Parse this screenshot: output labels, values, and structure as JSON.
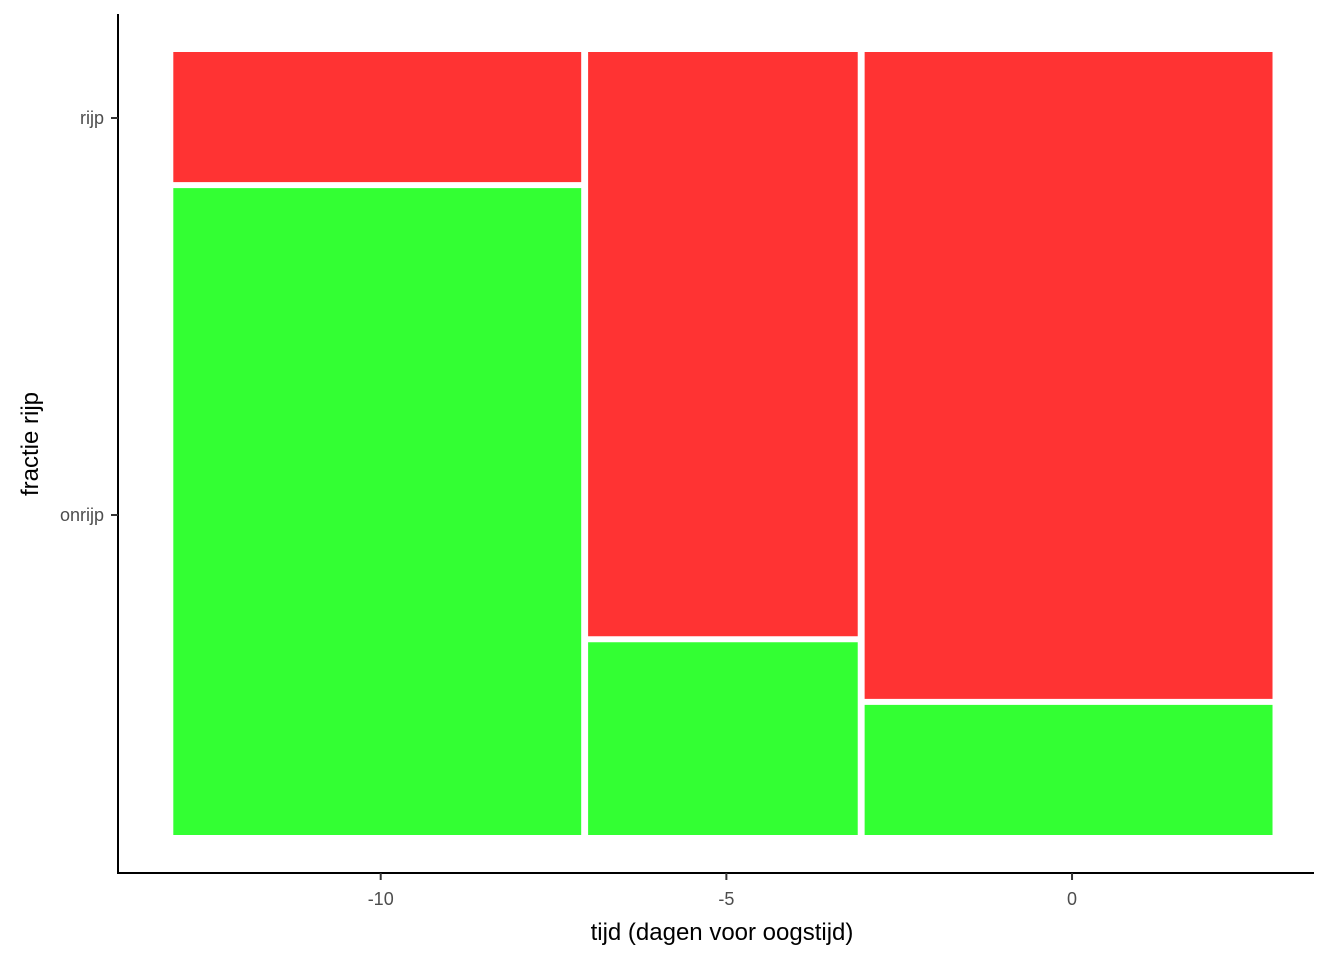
{
  "chart_data": {
    "type": "mosaic",
    "title": "",
    "xlabel": "tijd (dagen voor oogstijd)",
    "ylabel": "fractie rijp",
    "x_ticks": [
      -10,
      -5,
      0
    ],
    "y_tick_labels": [
      "onrijp",
      "rijp"
    ],
    "xlim": [
      -13.8,
      3.5
    ],
    "categories": [
      "onrijp",
      "rijp"
    ],
    "colors": {
      "onrijp": "#33ff33",
      "rijp": "#ff3333"
    },
    "columns": [
      {
        "x": -10,
        "x_start": -13,
        "x_end": -7.1,
        "fractions": {
          "onrijp": 0.83,
          "rijp": 0.17
        }
      },
      {
        "x": -5,
        "x_start": -7,
        "x_end": -3.1,
        "fractions": {
          "onrijp": 0.25,
          "rijp": 0.75
        }
      },
      {
        "x": 0,
        "x_start": -3,
        "x_end": 2.9,
        "fractions": {
          "onrijp": 0.17,
          "rijp": 0.83
        }
      }
    ],
    "legend": "none",
    "grid": false
  }
}
